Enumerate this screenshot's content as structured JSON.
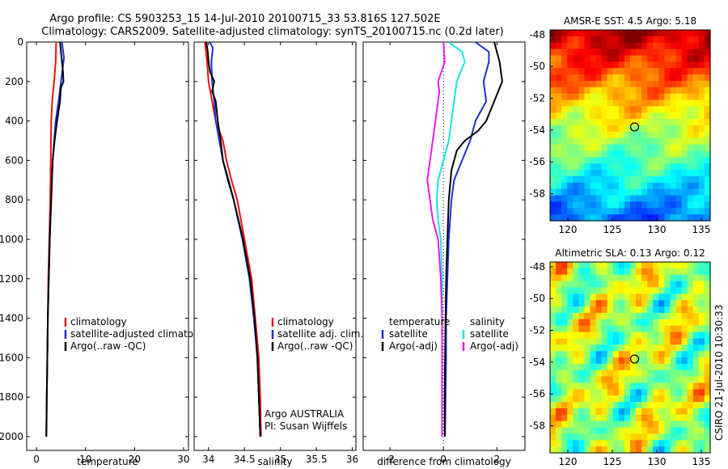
{
  "title": {
    "line1": "Argo profile: CS 5903253_15 14-Jul-2010 20100715_33 53.816S 127.502E",
    "line2": "Climatology: CARS2009. Satellite-adjusted climatology: synTS_20100715.nc (0.2d later)"
  },
  "watermark": "CSIRO 21-Jul-2010 10:30:33",
  "colors": {
    "climatology": "#ee1111",
    "satellite": "#1a2fd6",
    "argo": "#000000",
    "satellite_diff": "#18e4e4",
    "argo_diff": "#e81ce8"
  },
  "chart_data": [
    {
      "type": "line",
      "id": "temperature",
      "xlabel": "temperature",
      "ylabel": "",
      "xlim": [
        -2,
        31
      ],
      "ylim": [
        0,
        2070
      ],
      "y_reversed": true,
      "xticks": [
        0,
        10,
        20,
        30
      ],
      "yticks": [
        0,
        200,
        400,
        600,
        800,
        1000,
        1200,
        1400,
        1600,
        1800,
        2000
      ],
      "legend": [
        "climatology",
        "satellite-adjusted climatology",
        "Argo(..raw -QC)"
      ],
      "series": [
        {
          "name": "climatology",
          "color": "#ee1111",
          "points": [
            [
              4.0,
              0
            ],
            [
              3.9,
              100
            ],
            [
              3.6,
              200
            ],
            [
              3.2,
              300
            ],
            [
              3.0,
              400
            ],
            [
              2.9,
              600
            ],
            [
              2.8,
              800
            ],
            [
              2.6,
              1000
            ],
            [
              2.4,
              1200
            ],
            [
              2.3,
              1400
            ],
            [
              2.2,
              1600
            ],
            [
              2.1,
              1800
            ],
            [
              2.0,
              2000
            ]
          ]
        },
        {
          "name": "satellite-adjusted climatology",
          "color": "#1a2fd6",
          "points": [
            [
              5.2,
              0
            ],
            [
              5.6,
              80
            ],
            [
              5.0,
              200
            ],
            [
              4.5,
              300
            ],
            [
              3.9,
              400
            ],
            [
              3.3,
              600
            ],
            [
              3.0,
              800
            ],
            [
              2.7,
              1000
            ],
            [
              2.5,
              1200
            ],
            [
              2.3,
              1400
            ],
            [
              2.2,
              1600
            ],
            [
              2.1,
              1800
            ],
            [
              2.05,
              2000
            ]
          ]
        },
        {
          "name": "Argo(..raw -QC)",
          "color": "#000000",
          "points": [
            [
              4.8,
              0
            ],
            [
              5.0,
              50
            ],
            [
              5.4,
              150
            ],
            [
              5.5,
              200
            ],
            [
              5.0,
              230
            ],
            [
              4.8,
              300
            ],
            [
              4.2,
              400
            ],
            [
              3.7,
              500
            ],
            [
              3.3,
              600
            ],
            [
              3.0,
              800
            ],
            [
              2.7,
              1000
            ],
            [
              2.5,
              1200
            ],
            [
              2.3,
              1400
            ],
            [
              2.2,
              1600
            ],
            [
              2.1,
              1800
            ],
            [
              2.0,
              2000
            ]
          ]
        }
      ]
    },
    {
      "type": "line",
      "id": "salinity",
      "xlabel": "salinity",
      "ylabel": "",
      "xlim": [
        33.8,
        36.05
      ],
      "ylim": [
        0,
        2070
      ],
      "y_reversed": true,
      "xticks": [
        34,
        34.5,
        35,
        35.5,
        36
      ],
      "legend": [
        "climatology",
        "satellite adj. clim.",
        "Argo(..raw -QC)"
      ],
      "annotations": [
        "Argo AUSTRALIA",
        "PI: Susan Wijffels"
      ],
      "series": [
        {
          "name": "climatology",
          "color": "#ee1111",
          "points": [
            [
              33.95,
              0
            ],
            [
              33.98,
              100
            ],
            [
              34.0,
              200
            ],
            [
              34.05,
              300
            ],
            [
              34.1,
              400
            ],
            [
              34.2,
              500
            ],
            [
              34.25,
              600
            ],
            [
              34.32,
              700
            ],
            [
              34.4,
              800
            ],
            [
              34.5,
              1000
            ],
            [
              34.6,
              1200
            ],
            [
              34.65,
              1400
            ],
            [
              34.7,
              1600
            ],
            [
              34.72,
              1800
            ],
            [
              34.73,
              2000
            ]
          ]
        },
        {
          "name": "satellite adj. clim.",
          "color": "#1a2fd6",
          "points": [
            [
              34.02,
              0
            ],
            [
              34.06,
              30
            ],
            [
              34.04,
              100
            ],
            [
              34.05,
              200
            ],
            [
              34.08,
              300
            ],
            [
              34.1,
              400
            ],
            [
              34.15,
              500
            ],
            [
              34.2,
              600
            ],
            [
              34.28,
              700
            ],
            [
              34.35,
              800
            ],
            [
              34.47,
              1000
            ],
            [
              34.57,
              1200
            ],
            [
              34.63,
              1400
            ],
            [
              34.68,
              1600
            ],
            [
              34.7,
              1800
            ],
            [
              34.72,
              2000
            ]
          ]
        },
        {
          "name": "Argo(..raw -QC)",
          "color": "#000000",
          "points": [
            [
              33.97,
              0
            ],
            [
              33.99,
              50
            ],
            [
              34.0,
              100
            ],
            [
              34.02,
              150
            ],
            [
              34.08,
              200
            ],
            [
              34.05,
              250
            ],
            [
              34.1,
              300
            ],
            [
              34.13,
              400
            ],
            [
              34.17,
              500
            ],
            [
              34.2,
              600
            ],
            [
              34.27,
              700
            ],
            [
              34.35,
              800
            ],
            [
              34.48,
              1000
            ],
            [
              34.58,
              1200
            ],
            [
              34.64,
              1400
            ],
            [
              34.68,
              1600
            ],
            [
              34.7,
              1800
            ],
            [
              34.72,
              2000
            ]
          ]
        }
      ]
    },
    {
      "type": "line",
      "id": "difference",
      "xlabel": "difference from climatology",
      "ylabel": "",
      "xlim": [
        -3,
        3.05
      ],
      "ylim": [
        0,
        2070
      ],
      "y_reversed": true,
      "xticks": [
        -2,
        0,
        2
      ],
      "legend_groups": [
        {
          "title": "temperature",
          "entries": [
            "satellite",
            "Argo(-adj)"
          ]
        },
        {
          "title": "salinity",
          "entries": [
            "satellite",
            "Argo(-adj)"
          ]
        }
      ],
      "series": [
        {
          "name": "temperature satellite",
          "color": "#1a2fd6",
          "points": [
            [
              1.2,
              0
            ],
            [
              1.7,
              50
            ],
            [
              1.7,
              100
            ],
            [
              1.5,
              200
            ],
            [
              1.6,
              300
            ],
            [
              1.2,
              400
            ],
            [
              1.0,
              500
            ],
            [
              0.7,
              600
            ],
            [
              0.4,
              700
            ],
            [
              0.3,
              800
            ],
            [
              0.2,
              1000
            ],
            [
              0.15,
              1200
            ],
            [
              0.1,
              1400
            ],
            [
              0.1,
              1600
            ],
            [
              0.08,
              1800
            ],
            [
              0.06,
              2000
            ]
          ]
        },
        {
          "name": "temperature Argo(-adj)",
          "color": "#000000",
          "points": [
            [
              1.9,
              0
            ],
            [
              2.1,
              100
            ],
            [
              2.2,
              200
            ],
            [
              1.9,
              300
            ],
            [
              1.6,
              400
            ],
            [
              1.3,
              450
            ],
            [
              0.8,
              500
            ],
            [
              0.5,
              550
            ],
            [
              0.3,
              650
            ],
            [
              0.2,
              800
            ],
            [
              0.15,
              1000
            ],
            [
              0.1,
              1200
            ],
            [
              0.08,
              1400
            ],
            [
              0.06,
              1600
            ],
            [
              0.05,
              1800
            ],
            [
              0.05,
              2000
            ]
          ]
        },
        {
          "name": "salinity satellite",
          "color": "#18e4e4",
          "points": [
            [
              0.2,
              0
            ],
            [
              0.7,
              50
            ],
            [
              0.8,
              100
            ],
            [
              0.5,
              200
            ],
            [
              0.4,
              300
            ],
            [
              0.3,
              400
            ],
            [
              0.2,
              500
            ],
            [
              0.0,
              600
            ],
            [
              -0.2,
              700
            ],
            [
              -0.25,
              800
            ],
            [
              -0.2,
              900
            ],
            [
              -0.1,
              1000
            ],
            [
              -0.05,
              1200
            ],
            [
              -0.05,
              1400
            ],
            [
              -0.05,
              1600
            ],
            [
              -0.05,
              1800
            ],
            [
              -0.05,
              2000
            ]
          ]
        },
        {
          "name": "salinity Argo(-adj)",
          "color": "#e81ce8",
          "points": [
            [
              0.0,
              0
            ],
            [
              0.05,
              100
            ],
            [
              -0.2,
              200
            ],
            [
              -0.15,
              250
            ],
            [
              -0.2,
              300
            ],
            [
              -0.3,
              400
            ],
            [
              -0.4,
              500
            ],
            [
              -0.5,
              600
            ],
            [
              -0.6,
              700
            ],
            [
              -0.5,
              800
            ],
            [
              -0.4,
              900
            ],
            [
              -0.2,
              1000
            ],
            [
              -0.1,
              1200
            ],
            [
              -0.05,
              1400
            ],
            [
              -0.05,
              1600
            ],
            [
              -0.05,
              1800
            ],
            [
              -0.05,
              2000
            ]
          ]
        }
      ]
    },
    {
      "type": "heatmap",
      "id": "sst",
      "title": "AMSR-E SST: 4.5 Argo: 5.18",
      "xlim": [
        118,
        136
      ],
      "ylim": [
        -59.7,
        -47.7
      ],
      "xticks": [
        120,
        125,
        130,
        135
      ],
      "yticks": [
        -48,
        -50,
        -52,
        -54,
        -56,
        -58
      ],
      "marker": [
        127.5,
        -53.8
      ]
    },
    {
      "type": "heatmap",
      "id": "sla",
      "title": "Altimetric SLA: 0.13 Argo: 0.12",
      "xlim": [
        118,
        136
      ],
      "ylim": [
        -59.7,
        -47.7
      ],
      "xticks": [
        120,
        125,
        130,
        135
      ],
      "yticks": [
        -48,
        -50,
        -52,
        -54,
        -56,
        -58
      ],
      "marker": [
        127.5,
        -53.8
      ]
    }
  ]
}
